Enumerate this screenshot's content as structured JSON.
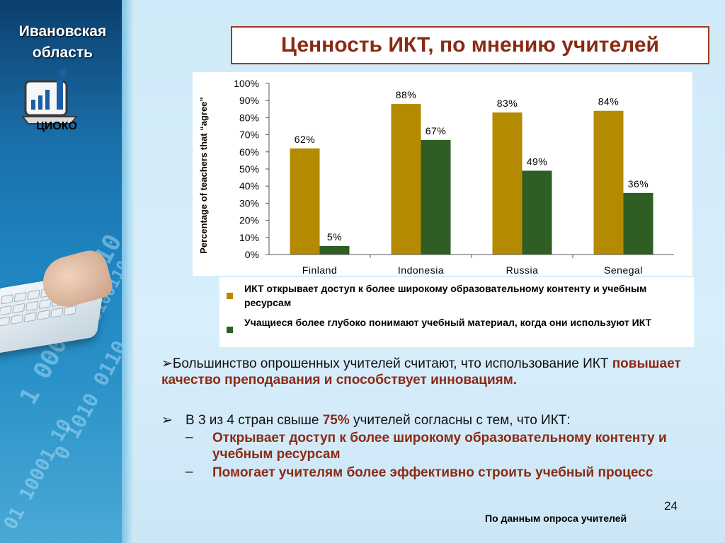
{
  "region": {
    "line1": "Ивановская",
    "line2": "область",
    "logo_text": "ЦИОКО"
  },
  "title": "Ценность ИКТ, по мнению учителей",
  "colors": {
    "gold": "#b48a00",
    "green": "#2e5e24",
    "accent": "#8b2a14"
  },
  "chart_data": {
    "type": "bar",
    "categories": [
      "Finland",
      "Indonesia",
      "Russia",
      "Senegal"
    ],
    "series": [
      {
        "name": "ИКТ открывает доступ к более широкому образовательному контенту и учебным ресурсам",
        "color": "#b48a00",
        "values": [
          62,
          88,
          83,
          84
        ],
        "labels": [
          "62%",
          "88%",
          "83%",
          "84%"
        ]
      },
      {
        "name": "Учащиеся более глубоко понимают учебный материал, когда они используют ИКТ",
        "color": "#2e5e24",
        "values": [
          5,
          67,
          49,
          36
        ],
        "labels": [
          "5%",
          "67%",
          "49%",
          "36%"
        ]
      }
    ],
    "ylabel": "Percentage of teachers that “agree”",
    "ylim": [
      0,
      100
    ],
    "yticks": [
      "0%",
      "10%",
      "20%",
      "30%",
      "40%",
      "50%",
      "60%",
      "70%",
      "80%",
      "90%",
      "100%"
    ]
  },
  "body": {
    "p1_prefix": "Большинство опрошенных учителей считают, что использование ИКТ ",
    "p1_accent": "повышает качество преподавания и способствует инновациям.",
    "p2_prefix": "В 3 из 4 стран свыше ",
    "p2_accent": "75%",
    "p2_suffix": " учителей согласны с тем, что ИКТ:",
    "sub1": "Открывает доступ к более широкому образовательному контенту и учебным ресурсам",
    "sub2": "Помогает учителям более эффективно строить учебный процесс",
    "bullet_arrow": "➢",
    "dash": "–"
  },
  "page_number": "24",
  "source": "По данным опроса учителей"
}
